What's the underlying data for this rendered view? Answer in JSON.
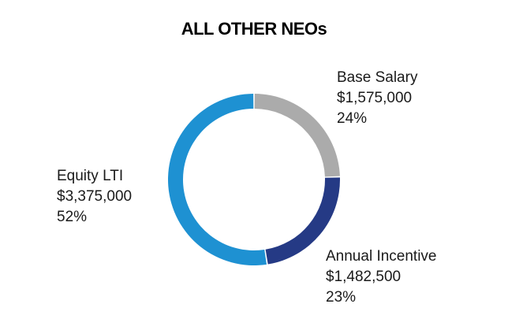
{
  "chart_data": {
    "type": "pie",
    "style": "donut",
    "title": "ALL OTHER NEOs",
    "categories": [
      "Base Salary",
      "Annual Incentive",
      "Equity LTI"
    ],
    "values": [
      1575000,
      1482500,
      3375000
    ],
    "value_labels": [
      "$1,575,000",
      "$1,482,500",
      "$3,375,000"
    ],
    "percent_labels": [
      "24%",
      "23%",
      "52%"
    ],
    "colors": [
      "#ababab",
      "#253a85",
      "#1e91d2"
    ],
    "start": "top, clockwise"
  }
}
